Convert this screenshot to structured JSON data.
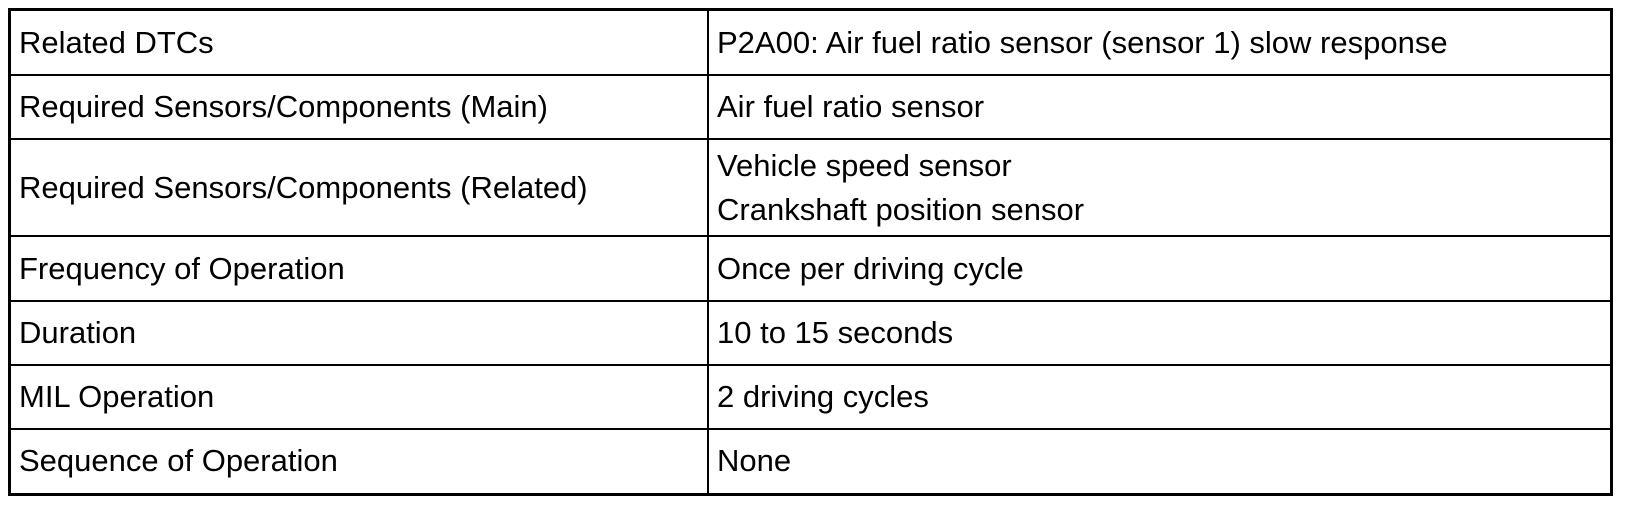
{
  "rows": [
    {
      "label": "Related DTCs",
      "value": [
        "P2A00: Air fuel ratio sensor (sensor 1) slow response"
      ]
    },
    {
      "label": "Required Sensors/Components (Main)",
      "value": [
        "Air fuel ratio sensor"
      ]
    },
    {
      "label": "Required Sensors/Components (Related)",
      "value": [
        "Vehicle speed sensor",
        "Crankshaft position sensor"
      ]
    },
    {
      "label": "Frequency of Operation",
      "value": [
        "Once per driving cycle"
      ]
    },
    {
      "label": "Duration",
      "value": [
        "10 to 15 seconds"
      ]
    },
    {
      "label": "MIL Operation",
      "value": [
        "2 driving cycles"
      ]
    },
    {
      "label": "Sequence of Operation",
      "value": [
        "None"
      ]
    }
  ]
}
